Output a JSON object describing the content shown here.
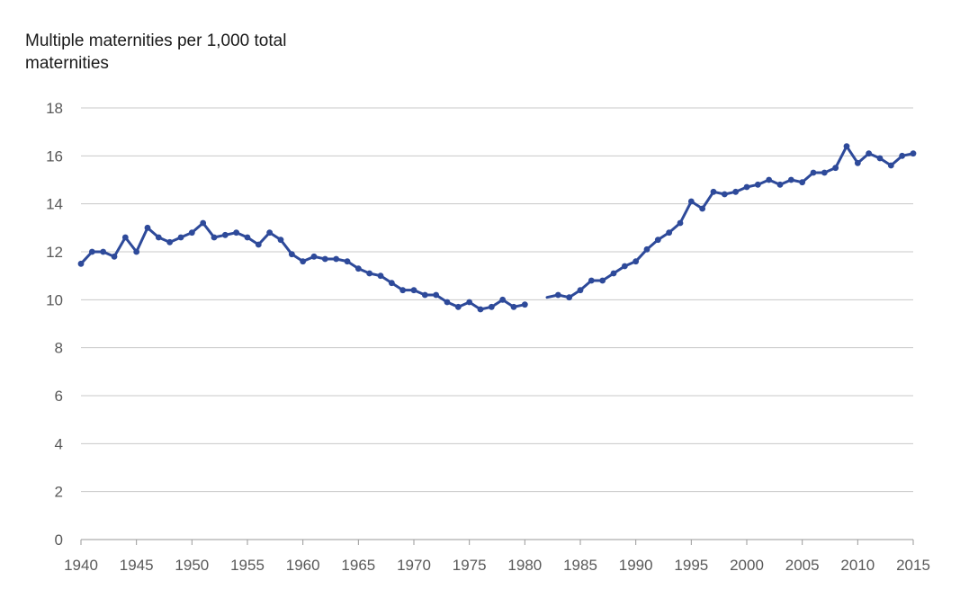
{
  "chart_data": {
    "type": "line",
    "ylabel_lines": [
      "Multiple maternities per 1,000 total",
      "maternities"
    ],
    "title": "",
    "xlabel": "",
    "xlim": [
      1940,
      2015
    ],
    "ylim": [
      0,
      18
    ],
    "x_ticks": [
      1940,
      1945,
      1950,
      1955,
      1960,
      1965,
      1970,
      1975,
      1980,
      1985,
      1990,
      1995,
      2000,
      2005,
      2010,
      2015
    ],
    "y_ticks": [
      0,
      2,
      4,
      6,
      8,
      10,
      12,
      14,
      16,
      18
    ],
    "grid": "horizontal",
    "legend": "none",
    "color": "#2e4a9a",
    "series": [
      {
        "x": [
          1940,
          1941,
          1942,
          1943,
          1944,
          1945,
          1946,
          1947,
          1948,
          1949,
          1950,
          1951,
          1952,
          1953,
          1954,
          1955,
          1956,
          1957,
          1958,
          1959,
          1960,
          1961,
          1962,
          1963,
          1964,
          1965,
          1966,
          1967,
          1968,
          1969,
          1970,
          1971,
          1972,
          1973,
          1974,
          1975,
          1976,
          1977,
          1978,
          1979,
          1980
        ],
        "values": [
          11.5,
          12.0,
          12.0,
          11.8,
          12.6,
          12.0,
          13.0,
          12.6,
          12.4,
          12.6,
          12.8,
          13.2,
          12.6,
          12.7,
          12.8,
          12.6,
          12.3,
          12.8,
          12.5,
          11.9,
          11.6,
          11.8,
          11.7,
          11.7,
          11.6,
          11.3,
          11.1,
          11.0,
          10.7,
          10.4,
          10.4,
          10.2,
          10.2,
          9.9,
          9.7,
          9.9,
          9.6,
          9.7,
          10.0,
          9.7,
          9.8
        ]
      },
      {
        "x": [
          1982,
          1983,
          1984,
          1985,
          1986,
          1987,
          1988,
          1989,
          1990,
          1991,
          1992,
          1993,
          1994,
          1995,
          1996,
          1997,
          1998,
          1999,
          2000,
          2001,
          2002,
          2003,
          2004,
          2005,
          2006,
          2007,
          2008,
          2009,
          2010,
          2011,
          2012,
          2013,
          2014,
          2015
        ],
        "values": [
          10.1,
          10.2,
          10.1,
          10.4,
          10.8,
          10.8,
          11.1,
          11.4,
          11.6,
          12.1,
          12.5,
          12.8,
          13.2,
          14.1,
          13.8,
          14.5,
          14.4,
          14.5,
          14.7,
          14.8,
          15.0,
          14.8,
          15.0,
          14.9,
          15.3,
          15.3,
          15.5,
          16.4,
          15.7,
          16.1,
          15.9,
          15.6,
          16.0,
          16.1
        ],
        "first_point_marker": false
      }
    ]
  }
}
